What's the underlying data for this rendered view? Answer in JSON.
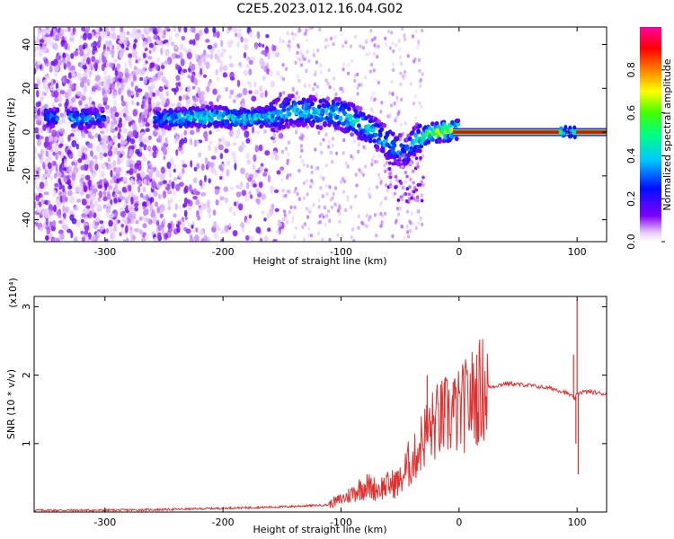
{
  "title": "C2E5.2023.012.16.04.G02",
  "chart_data": [
    {
      "type": "heatmap",
      "xlabel": "Height of straight line (km)",
      "ylabel": "Frequency (Hz)",
      "xlim": [
        -360,
        125
      ],
      "ylim": [
        -50,
        48
      ],
      "xticks": [
        -300,
        -200,
        -100,
        0,
        100
      ],
      "yticks": [
        -40,
        -20,
        0,
        20,
        40
      ],
      "colorbar": {
        "label": "Normalized spectral amplitude",
        "ticks": [
          0.0,
          0.2,
          0.4,
          0.6,
          0.8
        ],
        "range": [
          0,
          1
        ],
        "colormap": "rainbow (white-violet-blue-cyan-green-yellow-red-magenta)"
      },
      "trace": [
        {
          "x": -345,
          "y": 7,
          "amp": 0.4
        },
        {
          "x": -320,
          "y": 6,
          "amp": 0.45
        },
        {
          "x": -290,
          "y": 7,
          "amp": 0.3
        },
        {
          "x": -250,
          "y": 6,
          "amp": 0.45
        },
        {
          "x": -220,
          "y": 7,
          "amp": 0.55
        },
        {
          "x": -200,
          "y": 7,
          "amp": 0.5
        },
        {
          "x": -180,
          "y": 6,
          "amp": 0.5
        },
        {
          "x": -160,
          "y": 7,
          "amp": 0.5
        },
        {
          "x": -140,
          "y": 10,
          "amp": 0.45
        },
        {
          "x": -120,
          "y": 9,
          "amp": 0.45
        },
        {
          "x": -100,
          "y": 8,
          "amp": 0.5
        },
        {
          "x": -80,
          "y": 3,
          "amp": 0.5
        },
        {
          "x": -60,
          "y": -5,
          "amp": 0.45
        },
        {
          "x": -45,
          "y": -10,
          "amp": 0.4
        },
        {
          "x": -35,
          "y": -3,
          "amp": 0.5
        },
        {
          "x": -20,
          "y": 0,
          "amp": 0.75
        },
        {
          "x": 0,
          "y": 1,
          "amp": 0.7
        },
        {
          "x": 50,
          "y": 0,
          "amp": 0.95
        },
        {
          "x": 100,
          "y": 0,
          "amp": 0.95
        },
        {
          "x": 125,
          "y": 0,
          "amp": 0.95
        }
      ]
    },
    {
      "type": "line",
      "xlabel": "Height of straight line (km)",
      "ylabel": "SNR (10 * v/v)",
      "y_multiplier": "(x10⁴)",
      "xlim": [
        -360,
        125
      ],
      "ylim": [
        0,
        3.15
      ],
      "xticks": [
        -300,
        -200,
        -100,
        0,
        100
      ],
      "yticks": [
        1,
        2,
        3
      ],
      "color": "#e03030",
      "series": [
        {
          "x": [
            -360,
            -300,
            -250,
            -200,
            -150,
            -110,
            -95,
            -80,
            -70,
            -60,
            -50,
            -40,
            -30,
            -20,
            -10,
            0,
            10,
            20,
            40,
            60,
            80,
            90,
            95,
            98,
            100,
            102,
            110,
            125
          ],
          "y": [
            0.02,
            0.02,
            0.03,
            0.05,
            0.07,
            0.1,
            0.2,
            0.35,
            0.3,
            0.35,
            0.4,
            0.7,
            1.1,
            1.3,
            1.4,
            1.45,
            1.65,
            1.8,
            1.88,
            1.85,
            1.8,
            1.75,
            1.7,
            1.65,
            1.72,
            1.75,
            1.76,
            1.72
          ],
          "spikes": [
            {
              "x": -27,
              "y": 2.0
            },
            {
              "x": -12,
              "y": 1.95
            },
            {
              "x": -5,
              "y": 1.9
            },
            {
              "x": 97,
              "y": 2.3
            },
            {
              "x": 100,
              "y": 3.1
            },
            {
              "x": 101,
              "y": 0.55
            },
            {
              "x": 99,
              "y": 1.0
            }
          ]
        }
      ]
    }
  ]
}
